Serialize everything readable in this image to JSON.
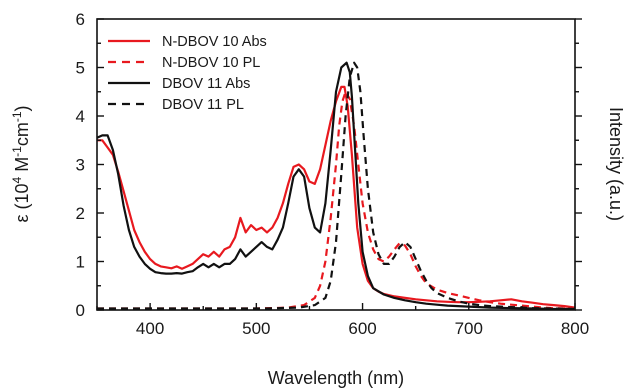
{
  "chart_data": {
    "type": "line",
    "xlabel": "Wavelength (nm)",
    "ylabel": {
      "prefix": "ε (10",
      "exp1": "4",
      "mid1": " M",
      "exp2": "-1",
      "mid2": "cm",
      "exp3": "-1",
      "suffix": ")"
    },
    "y2label": "Intensity (a.u.)",
    "xlim": [
      350,
      800
    ],
    "ylim": [
      0,
      6
    ],
    "xticks": [
      400,
      500,
      600,
      700,
      800
    ],
    "yticks": [
      0,
      1,
      2,
      3,
      4,
      5,
      6
    ],
    "grid": false,
    "legend": {
      "position": "top-left"
    },
    "series": [
      {
        "name": "N-DBOV 10 Abs",
        "color": "#e8191f",
        "dash": "solid",
        "x": [
          350,
          355,
          360,
          365,
          370,
          375,
          380,
          385,
          390,
          395,
          400,
          405,
          410,
          415,
          420,
          425,
          430,
          435,
          440,
          445,
          450,
          455,
          460,
          465,
          470,
          475,
          480,
          485,
          490,
          495,
          500,
          505,
          510,
          515,
          520,
          525,
          530,
          535,
          540,
          545,
          550,
          555,
          560,
          565,
          570,
          575,
          580,
          583,
          586,
          590,
          595,
          600,
          605,
          610,
          615,
          620,
          630,
          640,
          650,
          660,
          670,
          680,
          690,
          700,
          710,
          720,
          730,
          740,
          750,
          760,
          770,
          780,
          790,
          800
        ],
        "y": [
          3.5,
          3.5,
          3.35,
          3.2,
          2.85,
          2.45,
          2.05,
          1.65,
          1.4,
          1.2,
          1.05,
          0.95,
          0.9,
          0.88,
          0.86,
          0.9,
          0.85,
          0.9,
          0.95,
          1.05,
          1.15,
          1.1,
          1.2,
          1.1,
          1.25,
          1.3,
          1.5,
          1.9,
          1.6,
          1.75,
          1.65,
          1.7,
          1.6,
          1.7,
          1.9,
          2.2,
          2.6,
          2.95,
          3.0,
          2.9,
          2.65,
          2.6,
          2.9,
          3.4,
          3.9,
          4.3,
          4.6,
          4.6,
          4.2,
          3.2,
          1.7,
          0.95,
          0.6,
          0.45,
          0.38,
          0.33,
          0.28,
          0.25,
          0.22,
          0.2,
          0.18,
          0.17,
          0.16,
          0.16,
          0.17,
          0.18,
          0.2,
          0.22,
          0.18,
          0.15,
          0.12,
          0.1,
          0.08,
          0.05
        ]
      },
      {
        "name": "N-DBOV 10 PL",
        "color": "#e8191f",
        "dash": "dashed",
        "x": [
          350,
          500,
          530,
          545,
          555,
          560,
          565,
          570,
          575,
          578,
          581,
          584,
          588,
          592,
          596,
          600,
          605,
          610,
          615,
          620,
          625,
          630,
          635,
          640,
          645,
          650,
          655,
          660,
          670,
          680,
          690,
          700,
          710,
          720,
          730,
          740,
          750,
          760,
          770,
          780,
          790,
          800
        ],
        "y": [
          0.03,
          0.03,
          0.05,
          0.1,
          0.25,
          0.5,
          1.0,
          1.9,
          3.0,
          3.8,
          4.3,
          4.5,
          4.35,
          3.8,
          3.0,
          2.2,
          1.6,
          1.25,
          1.05,
          1.0,
          1.1,
          1.25,
          1.38,
          1.33,
          1.15,
          0.9,
          0.7,
          0.55,
          0.42,
          0.35,
          0.3,
          0.25,
          0.2,
          0.16,
          0.13,
          0.11,
          0.09,
          0.07,
          0.05,
          0.04,
          0.03,
          0.02
        ]
      },
      {
        "name": "DBOV 11 Abs",
        "color": "#111111",
        "dash": "solid",
        "x": [
          350,
          355,
          360,
          365,
          370,
          375,
          380,
          385,
          390,
          395,
          400,
          405,
          410,
          415,
          420,
          425,
          430,
          435,
          440,
          445,
          450,
          455,
          460,
          465,
          470,
          475,
          480,
          485,
          490,
          495,
          500,
          505,
          510,
          515,
          520,
          525,
          530,
          535,
          540,
          545,
          550,
          555,
          560,
          565,
          570,
          575,
          580,
          585,
          588,
          590,
          593,
          596,
          600,
          605,
          610,
          620,
          630,
          640,
          650,
          660,
          670,
          680,
          690,
          700,
          720,
          740,
          760,
          780,
          800
        ],
        "y": [
          3.55,
          3.6,
          3.6,
          3.3,
          2.8,
          2.15,
          1.65,
          1.3,
          1.1,
          0.95,
          0.85,
          0.78,
          0.76,
          0.75,
          0.75,
          0.76,
          0.75,
          0.78,
          0.8,
          0.88,
          0.95,
          0.88,
          0.95,
          0.88,
          0.95,
          0.95,
          1.05,
          1.25,
          1.1,
          1.2,
          1.3,
          1.4,
          1.3,
          1.25,
          1.45,
          1.7,
          2.2,
          2.75,
          2.9,
          2.75,
          2.1,
          1.7,
          1.6,
          2.2,
          3.3,
          4.5,
          5.0,
          5.1,
          4.9,
          4.4,
          3.3,
          2.2,
          1.2,
          0.7,
          0.45,
          0.32,
          0.25,
          0.2,
          0.16,
          0.13,
          0.11,
          0.09,
          0.08,
          0.07,
          0.05,
          0.04,
          0.03,
          0.02,
          0.02
        ]
      },
      {
        "name": "DBOV 11 PL",
        "color": "#111111",
        "dash": "dashed",
        "x": [
          350,
          510,
          540,
          555,
          565,
          570,
          575,
          580,
          584,
          588,
          592,
          595,
          598,
          601,
          605,
          610,
          615,
          620,
          625,
          630,
          635,
          640,
          645,
          650,
          655,
          660,
          665,
          670,
          680,
          690,
          700,
          710,
          720,
          740,
          760,
          780,
          800
        ],
        "y": [
          0.03,
          0.03,
          0.05,
          0.1,
          0.25,
          0.6,
          1.4,
          2.8,
          4.0,
          4.8,
          5.1,
          5.0,
          4.5,
          3.6,
          2.5,
          1.6,
          1.15,
          0.95,
          0.95,
          1.1,
          1.3,
          1.4,
          1.3,
          1.05,
          0.8,
          0.6,
          0.45,
          0.35,
          0.25,
          0.18,
          0.13,
          0.1,
          0.08,
          0.06,
          0.04,
          0.03,
          0.02
        ]
      }
    ]
  }
}
